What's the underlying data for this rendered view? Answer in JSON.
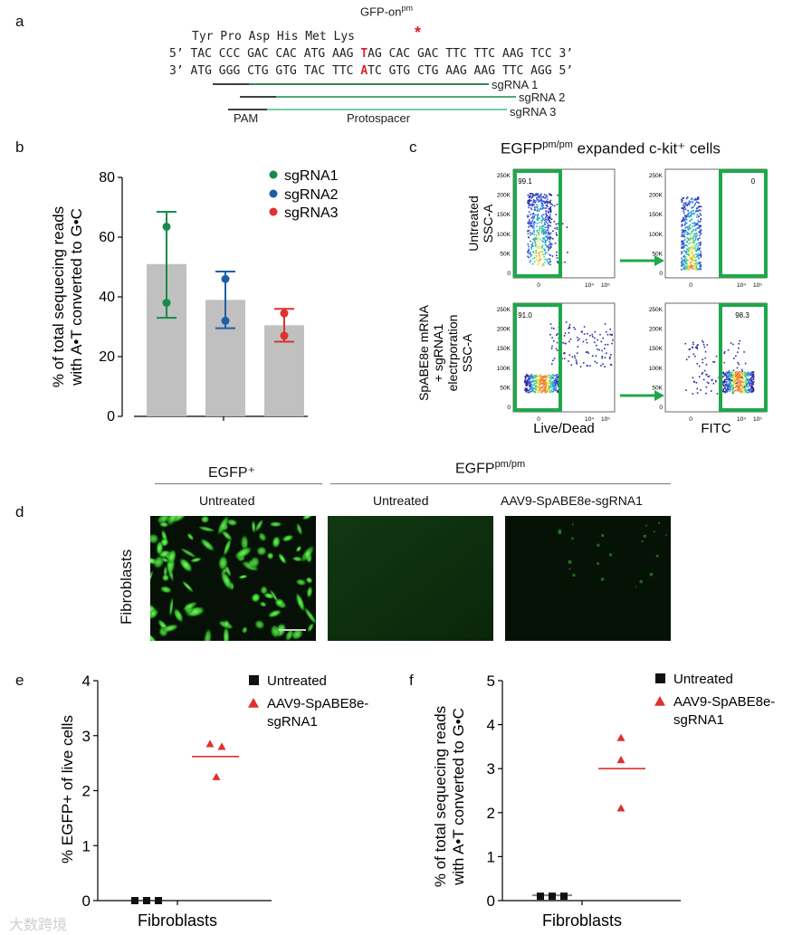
{
  "panels": {
    "a": "a",
    "b": "b",
    "c": "c",
    "d": "d",
    "e": "e",
    "f": "f"
  },
  "panel_a": {
    "gfp_title": "GFP-on",
    "gfp_sup": "pm",
    "star": "*",
    "aa_line": "Tyr Pro Asp His Met Lys",
    "top_strand": {
      "pre": "5’ TAC CCC GAC CAC ATG AAG ",
      "highlight": "T",
      "post": "AG CAC GAC TTC TTC AAG TCC 3’"
    },
    "bottom_strand": {
      "pre": "3’ ATG GGG CTG GTG TAC TTC ",
      "highlight": "A",
      "post": "TC GTG CTG AAG AAG TTC AGG 5’"
    },
    "sgRNA_labels": [
      "sgRNA 1",
      "sgRNA 2",
      "sgRNA 3"
    ],
    "pam_label": "PAM",
    "protospacer_label": "Protospacer"
  },
  "panel_c": {
    "title_main": "EGFP",
    "title_sup": "pm/pm",
    "title_rest": " expanded c-kit⁺ cells",
    "row_labels": [
      [
        "Untreated",
        "SSC-A"
      ],
      [
        "SpABE8e mRNA",
        "+ sgRNA1",
        "electrporation",
        "SSC-A"
      ]
    ],
    "gate_values": [
      "99.1",
      "0",
      "91.0",
      "98.3"
    ],
    "y_ticks": [
      "250K",
      "200K",
      "150K",
      "100K",
      "50K",
      "0"
    ],
    "x_ticks": [
      "0",
      "10⁴",
      "10⁵"
    ],
    "x_labels": [
      "Live/Dead",
      "FITC"
    ]
  },
  "panel_d": {
    "group_left": "EGFP⁺",
    "group_right_main": "EGFP",
    "group_right_sup": "pm/pm",
    "conditions": [
      "Untreated",
      "Untreated",
      "AAV9-SpABE8e-sgRNA1"
    ],
    "row_label": "Fibroblasts"
  },
  "colors": {
    "sgRNA1": "#1a8a4a",
    "sgRNA2": "#1f5fa8",
    "sgRNA3": "#e03030",
    "bar": "#c0c0c0",
    "red_marker": "#e03030",
    "gate_green": "#1fa84a",
    "dna_red": "#d9232e"
  },
  "chart_data": [
    {
      "id": "b",
      "type": "bar",
      "categories": [
        "sgRNA1",
        "sgRNA2",
        "sgRNA3"
      ],
      "values": [
        51,
        39,
        30.5
      ],
      "error_low": [
        33,
        29.5,
        25
      ],
      "error_high": [
        68.5,
        48.5,
        36
      ],
      "points": [
        [
          63.5,
          38
        ],
        [
          46,
          32
        ],
        [
          34.5,
          27
        ]
      ],
      "legend": [
        "sgRNA1",
        "sgRNA2",
        "sgRNA3"
      ],
      "ylabel": [
        "% of total sequecing reads",
        "with A•T converted to G•C"
      ],
      "xlabel": "",
      "ylim": [
        0,
        80
      ],
      "yticks": [
        "0",
        "20",
        "40",
        "60",
        "80"
      ],
      "legend_position": "top-right"
    },
    {
      "id": "e",
      "type": "scatter",
      "category": "Fibroblasts",
      "series": [
        {
          "name": "Untreated",
          "values": [
            0,
            0,
            0
          ],
          "mean": 0
        },
        {
          "name": "AAV9-SpABE8e-sgRNA1",
          "values": [
            2.85,
            2.8,
            2.25
          ],
          "mean": 2.62
        }
      ],
      "legend_lines": [
        [
          "Untreated"
        ],
        [
          "AAV9-SpABE8e-",
          "sgRNA1"
        ]
      ],
      "ylabel": "% EGFP+ of live cells",
      "ylim": [
        0,
        4
      ],
      "yticks": [
        "0",
        "1",
        "2",
        "3",
        "4"
      ],
      "legend_position": "top-right"
    },
    {
      "id": "f",
      "type": "scatter",
      "category": "Fibroblasts",
      "series": [
        {
          "name": "Untreated",
          "values": [
            0.1,
            0.1,
            0.1
          ],
          "mean": 0.12
        },
        {
          "name": "AAV9-SpABE8e-sgRNA1",
          "values": [
            3.7,
            3.2,
            2.1
          ],
          "mean": 3.0
        }
      ],
      "legend_lines": [
        [
          "Untreated"
        ],
        [
          "AAV9-SpABE8e-",
          "sgRNA1"
        ]
      ],
      "ylabel": [
        "% of total sequecing reads",
        "with A•T converted to G•C"
      ],
      "ylim": [
        0,
        5
      ],
      "yticks": [
        "0",
        "1",
        "2",
        "3",
        "4",
        "5"
      ],
      "legend_position": "top-right"
    }
  ],
  "watermark": "大数跨境"
}
